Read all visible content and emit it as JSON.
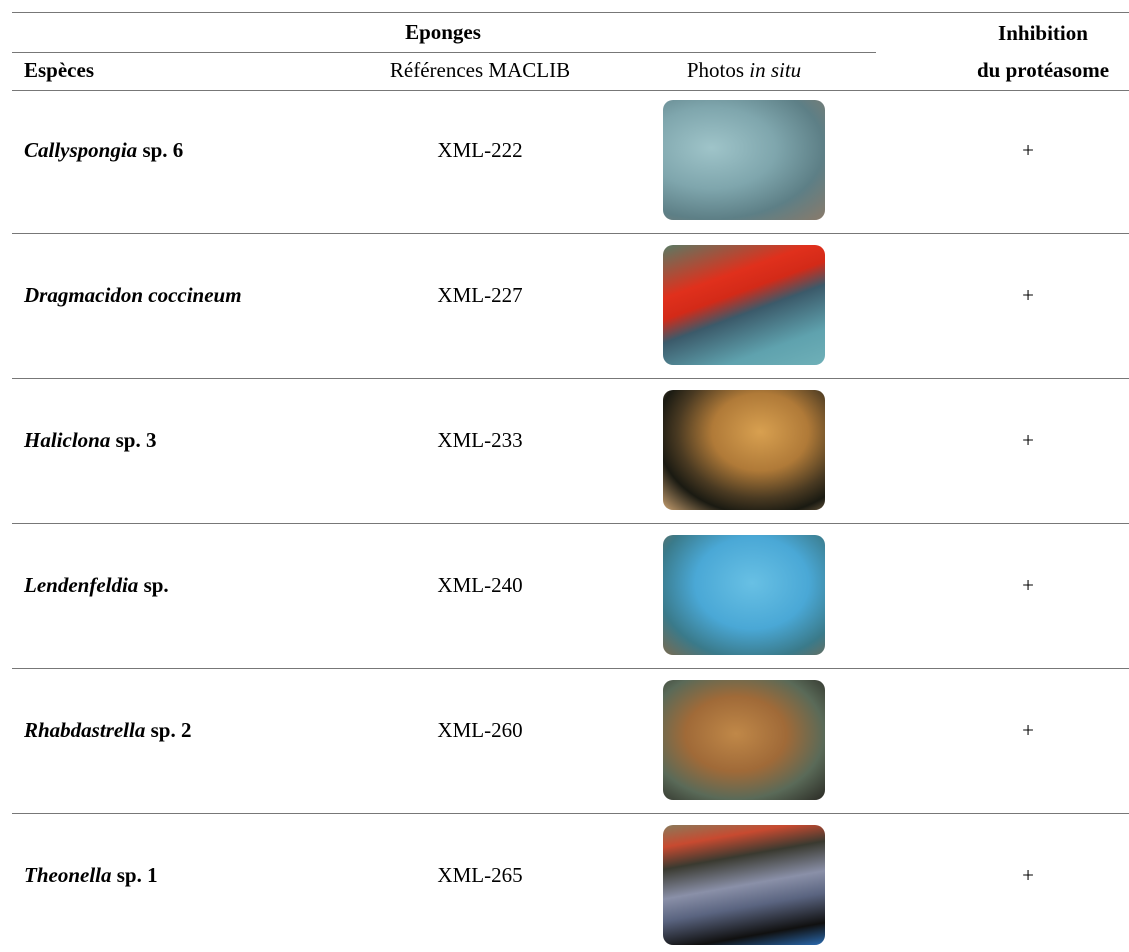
{
  "table": {
    "header": {
      "group": "Eponges",
      "inhibition": [
        "Inhibition",
        "du protéasome"
      ],
      "species": "Espèces",
      "references": "Références MACLIB",
      "photos": [
        "Photos",
        "in situ"
      ]
    },
    "rows": [
      {
        "genus": "Callyspongia",
        "rest": "sp. 6",
        "reference": "XML-222",
        "inhibition": "+"
      },
      {
        "genus": "Dragmacidon coccineum",
        "reference": "XML-227",
        "inhibition": "+"
      },
      {
        "genus": "Haliclona",
        "rest": "sp. 3",
        "reference": "XML-233",
        "inhibition": "+"
      },
      {
        "genus": "Lendenfeldia",
        "rest": "sp.",
        "reference": "XML-240",
        "inhibition": "+"
      },
      {
        "genus": "Rhabdastrella",
        "rest": "sp. 2",
        "reference": "XML-260",
        "inhibition": "+"
      },
      {
        "genus": "Theonella",
        "rest": "sp. 1",
        "reference": "XML-265",
        "inhibition": "+"
      }
    ]
  }
}
